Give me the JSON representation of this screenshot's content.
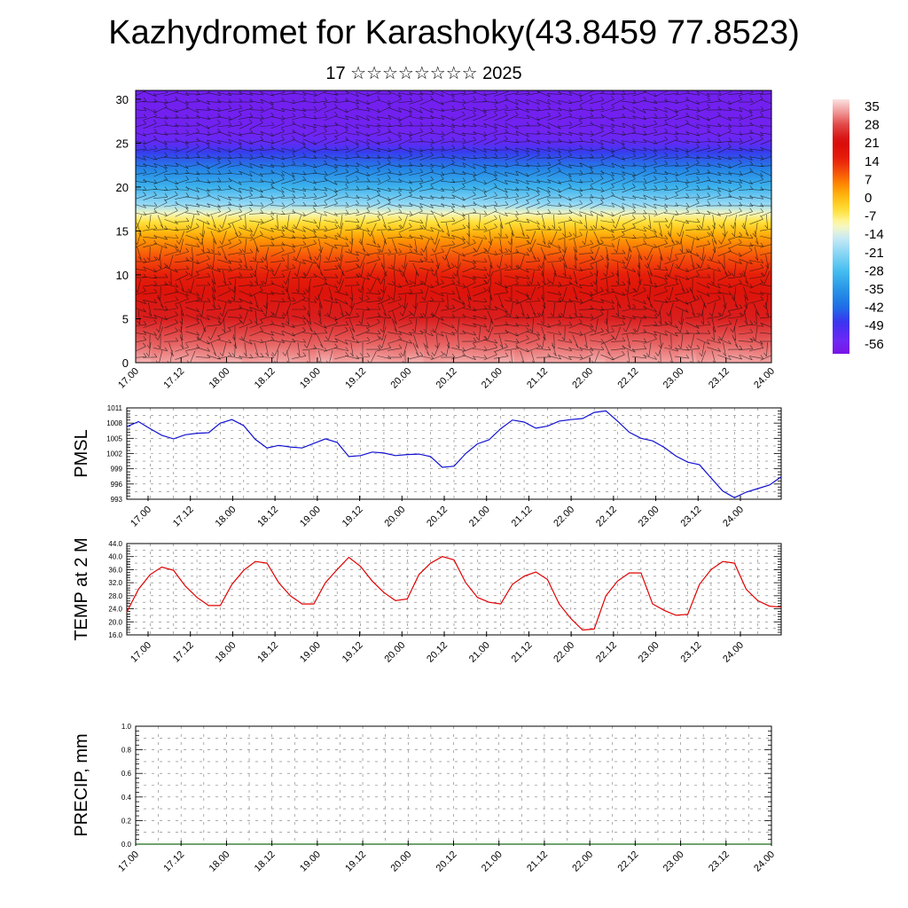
{
  "title": "Kazhydromet for Karashoky(43.8459 77.8523)",
  "subtitle": "17 ☆☆☆☆☆☆☆☆ 2025",
  "time_ticks": [
    "17.00",
    "17.12",
    "18.00",
    "18.12",
    "19.00",
    "19.12",
    "20.00",
    "20.12",
    "21.00",
    "21.12",
    "22.00",
    "22.12",
    "23.00",
    "23.12",
    "24.00"
  ],
  "chart_data": [
    {
      "type": "heatmap",
      "ylim": [
        0,
        31
      ],
      "y_ticks": [
        0,
        5,
        10,
        15,
        20,
        25,
        30
      ],
      "x_ticks": [
        "17.00",
        "17.12",
        "18.00",
        "18.12",
        "19.00",
        "19.12",
        "20.00",
        "20.12",
        "21.00",
        "21.12",
        "22.00",
        "22.12",
        "23.00",
        "23.12",
        "24.00"
      ],
      "colorbar_labels": [
        "35",
        "28",
        "21",
        "14",
        "7",
        "0",
        "-7",
        "-14",
        "-21",
        "-28",
        "-35",
        "-42",
        "-49",
        "-56"
      ],
      "colorbar_range": [
        -60,
        38
      ],
      "vertical_profile": {
        "height": [
          0,
          2,
          5,
          8,
          10,
          12,
          14,
          15,
          16,
          17,
          18,
          20,
          22,
          24,
          25,
          26,
          28,
          31
        ],
        "value": [
          35,
          30,
          24,
          19,
          15,
          10,
          4,
          0,
          -5,
          -11,
          -20,
          -30,
          -38,
          -47,
          -53,
          -56,
          -57,
          -57
        ]
      },
      "overlay": "wind barbs"
    },
    {
      "type": "line",
      "ylabel": "PMSL",
      "ylim": [
        993,
        1011
      ],
      "y_ticks": [
        993,
        996,
        999,
        1002,
        1005,
        1008,
        1011
      ],
      "x_ticks": [
        "17.00",
        "17.12",
        "18.00",
        "18.12",
        "19.00",
        "19.12",
        "20.00",
        "20.12",
        "21.00",
        "21.12",
        "22.00",
        "22.12",
        "23.00",
        "23.12",
        "24.00"
      ],
      "series": [
        {
          "color": "#1010d0",
          "hours": [
            0,
            3,
            6,
            9,
            12,
            15,
            18,
            21,
            24,
            27,
            30,
            33,
            36,
            39,
            42,
            45,
            48,
            51,
            54,
            57,
            60,
            63,
            66,
            69,
            72,
            75,
            78,
            81,
            84,
            87,
            90,
            93,
            96,
            99,
            102,
            105,
            108,
            111,
            114,
            117,
            120,
            123,
            126,
            129,
            132,
            135,
            138,
            141,
            144,
            147,
            150,
            153,
            156,
            159,
            162,
            165,
            168
          ],
          "values": [
            1007.3,
            1008.3,
            1006.9,
            1005.6,
            1004.9,
            1005.7,
            1006.0,
            1006.1,
            1008.0,
            1008.7,
            1007.5,
            1004.8,
            1003.1,
            1003.6,
            1003.3,
            1003.1,
            1004.0,
            1004.9,
            1004.2,
            1001.4,
            1001.6,
            1002.3,
            1002.1,
            1001.6,
            1001.8,
            1001.9,
            1001.4,
            999.3,
            999.5,
            1002.0,
            1003.9,
            1004.7,
            1006.9,
            1008.6,
            1008.2,
            1007.0,
            1007.4,
            1008.4,
            1008.7,
            1008.9,
            1010.1,
            1010.4,
            1008.4,
            1006.2,
            1005.0,
            1004.5,
            1003.2,
            1001.5,
            1000.3,
            999.8,
            997.2,
            994.6,
            993.3,
            994.4,
            995.1,
            995.8,
            997.4
          ]
        }
      ]
    },
    {
      "type": "line",
      "ylabel": "TEMP at 2 M",
      "ylim": [
        16.0,
        44.0
      ],
      "y_ticks": [
        "16.0",
        "20.0",
        "24.0",
        "28.0",
        "32.0",
        "36.0",
        "40.0",
        "44.0"
      ],
      "x_ticks": [
        "17.00",
        "17.12",
        "18.00",
        "18.12",
        "19.00",
        "19.12",
        "20.00",
        "20.12",
        "21.00",
        "21.12",
        "22.00",
        "22.12",
        "23.00",
        "23.12",
        "24.00"
      ],
      "series": [
        {
          "color": "#e00000",
          "hours": [
            0,
            3,
            6,
            9,
            12,
            15,
            18,
            21,
            24,
            27,
            30,
            33,
            36,
            39,
            42,
            45,
            48,
            51,
            54,
            57,
            60,
            63,
            66,
            69,
            72,
            75,
            78,
            81,
            84,
            87,
            90,
            93,
            96,
            99,
            102,
            105,
            108,
            111,
            114,
            117,
            120,
            123,
            126,
            129,
            132,
            135,
            138,
            141,
            144,
            147,
            150,
            153,
            156,
            159,
            162,
            165,
            168
          ],
          "values": [
            23.0,
            30.0,
            34.5,
            36.8,
            35.8,
            31.0,
            27.5,
            25.0,
            25.0,
            31.5,
            35.8,
            38.5,
            38.0,
            32.0,
            28.0,
            25.5,
            25.5,
            32.0,
            36.0,
            39.8,
            37.0,
            32.5,
            29.0,
            26.5,
            27.0,
            34.5,
            38.0,
            40.0,
            39.0,
            32.0,
            27.5,
            26.0,
            25.5,
            31.5,
            34.0,
            35.3,
            33.0,
            25.5,
            21.0,
            17.5,
            17.8,
            28.0,
            32.5,
            35.0,
            35.0,
            25.5,
            23.5,
            22.0,
            22.3,
            31.5,
            36.0,
            38.5,
            38.0,
            30.0,
            26.5,
            24.8,
            24.5
          ]
        }
      ]
    },
    {
      "type": "line",
      "ylabel": "PRECIP, mm",
      "ylim": [
        0.0,
        1.0
      ],
      "y_ticks": [
        "0.0",
        "0.2",
        "0.4",
        "0.6",
        "0.8",
        "1.0"
      ],
      "x_ticks": [
        "17.00",
        "17.12",
        "18.00",
        "18.12",
        "19.00",
        "19.12",
        "20.00",
        "20.12",
        "21.00",
        "21.12",
        "22.00",
        "22.12",
        "23.00",
        "23.12",
        "24.00"
      ],
      "series": [
        {
          "color": "#1a6b1a",
          "hours": [
            0,
            168
          ],
          "values": [
            0.0,
            0.0
          ]
        }
      ]
    }
  ]
}
